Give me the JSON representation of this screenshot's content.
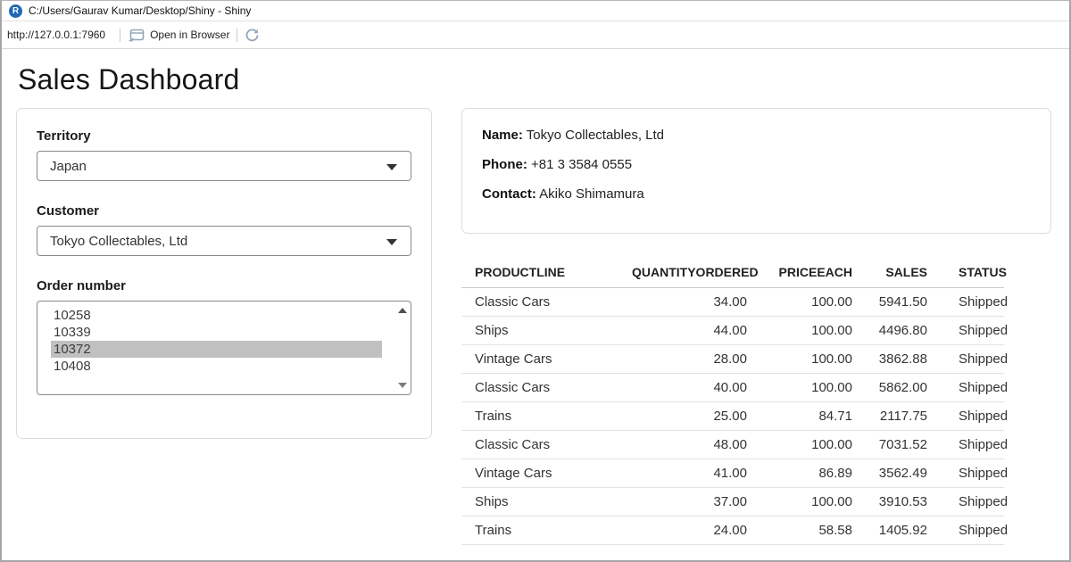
{
  "window": {
    "title": "C:/Users/Gaurav Kumar/Desktop/Shiny - Shiny"
  },
  "toolbar": {
    "url": "http://127.0.0.1:7960",
    "open_in_browser_label": "Open in Browser"
  },
  "icons": {
    "app": "r-logo-icon",
    "open": "open-in-browser-icon",
    "refresh": "refresh-icon"
  },
  "colors": {
    "r_logo_blue": "#2166b5",
    "toolbar_icon": "#92a5ba",
    "list_selection": "#c0c0c0",
    "card_border": "#dcdcdc",
    "control_border": "#8a8a8a"
  },
  "page": {
    "title": "Sales Dashboard"
  },
  "filters": {
    "territory": {
      "label": "Territory",
      "value": "Japan"
    },
    "customer": {
      "label": "Customer",
      "value": "Tokyo Collectables, Ltd"
    },
    "order_number": {
      "label": "Order number",
      "options": [
        "10258",
        "10339",
        "10372",
        "10408"
      ],
      "selected": "10372"
    }
  },
  "customer_info": {
    "name_label": "Name:",
    "name": "Tokyo Collectables, Ltd",
    "phone_label": "Phone:",
    "phone": "+81 3 3584 0555",
    "contact_label": "Contact:",
    "contact": "Akiko Shimamura"
  },
  "orders_table": {
    "columns": [
      "PRODUCTLINE",
      "QUANTITYORDERED",
      "PRICEEACH",
      "SALES",
      "STATUS"
    ],
    "rows": [
      [
        "Classic Cars",
        "34.00",
        "100.00",
        "5941.50",
        "Shipped"
      ],
      [
        "Ships",
        "44.00",
        "100.00",
        "4496.80",
        "Shipped"
      ],
      [
        "Vintage Cars",
        "28.00",
        "100.00",
        "3862.88",
        "Shipped"
      ],
      [
        "Classic Cars",
        "40.00",
        "100.00",
        "5862.00",
        "Shipped"
      ],
      [
        "Trains",
        "25.00",
        "84.71",
        "2117.75",
        "Shipped"
      ],
      [
        "Classic Cars",
        "48.00",
        "100.00",
        "7031.52",
        "Shipped"
      ],
      [
        "Vintage Cars",
        "41.00",
        "86.89",
        "3562.49",
        "Shipped"
      ],
      [
        "Ships",
        "37.00",
        "100.00",
        "3910.53",
        "Shipped"
      ],
      [
        "Trains",
        "24.00",
        "58.58",
        "1405.92",
        "Shipped"
      ]
    ]
  }
}
